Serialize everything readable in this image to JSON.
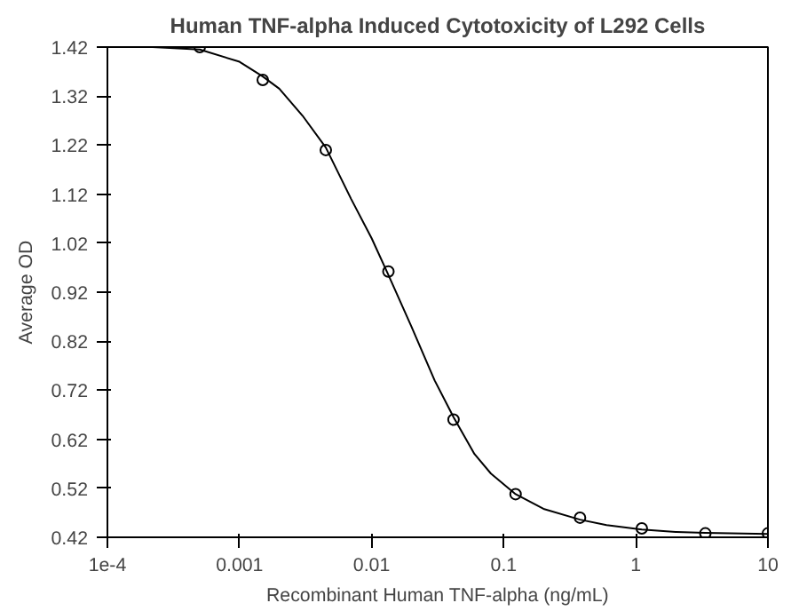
{
  "chart_data": {
    "type": "scatter",
    "title": "Human TNF-alpha Induced Cytotoxicity of L292 Cells",
    "xlabel": "Recombinant Human TNF-alpha (ng/mL)",
    "ylabel": "Average OD",
    "log": "x",
    "grid": false,
    "marker": "circle",
    "xlim": [
      0.0001,
      10
    ],
    "xticks": [
      {
        "value": 0.0001,
        "label": "1e-4"
      },
      0.001,
      0.01,
      0.1,
      1,
      10
    ],
    "ylim": [
      0.42,
      1.42
    ],
    "yticks": [
      0.42,
      0.52,
      0.62,
      0.72,
      0.82,
      0.92,
      1.02,
      1.12,
      1.22,
      1.32,
      1.42
    ],
    "series": [
      {
        "color": "#000000",
        "x": [
          0.0005,
          0.0015,
          0.0045,
          0.0134,
          0.0417,
          0.123,
          0.378,
          1.11,
          3.36,
          10
        ],
        "values": [
          1.42,
          1.353,
          1.21,
          0.962,
          0.66,
          0.508,
          0.46,
          0.438,
          0.428,
          0.428
        ]
      },
      {
        "type": "line",
        "color": "#000000",
        "marker": "none",
        "x": [
          0.00022,
          0.0005,
          0.001,
          0.0015,
          0.002,
          0.003,
          0.0045,
          0.007,
          0.01,
          0.0134,
          0.02,
          0.03,
          0.0417,
          0.06,
          0.08,
          0.123,
          0.2,
          0.378,
          0.6,
          1.11,
          2,
          3.36,
          10
        ],
        "values": [
          1.42,
          1.415,
          1.39,
          1.36,
          1.335,
          1.28,
          1.215,
          1.11,
          1.03,
          0.955,
          0.85,
          0.74,
          0.665,
          0.59,
          0.55,
          0.508,
          0.478,
          0.456,
          0.445,
          0.436,
          0.431,
          0.429,
          0.427
        ]
      }
    ]
  }
}
